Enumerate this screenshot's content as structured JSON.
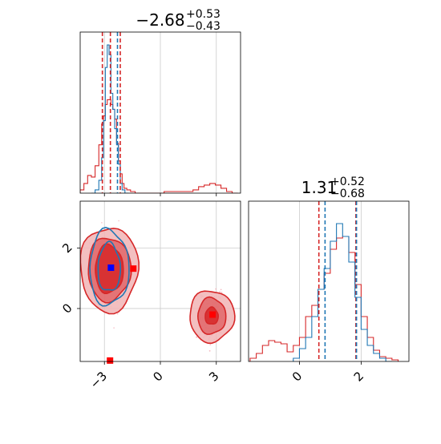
{
  "colors": {
    "red": "#d62728",
    "blue": "#1f77b4",
    "red_fill_light": "#f1b4b5",
    "red_fill_mid": "#e06668",
    "red_fill_dark": "#d62728",
    "grid": "#cccccc",
    "marker_red": "#ff0000",
    "marker_blue": "#0000ff"
  },
  "chart_data": [
    {
      "type": "histogram",
      "panel": "param1-marginal",
      "title": {
        "value": "−2.68",
        "sup": "+0.53",
        "sub": "−0.43"
      },
      "xlim": [
        -4.3,
        4.3
      ],
      "ylim": [
        0,
        1
      ],
      "grid": true,
      "ticks": [
        -3,
        0,
        3
      ],
      "series": [
        {
          "color": "#d62728",
          "x": [
            -4.2,
            -4.0,
            -3.8,
            -3.6,
            -3.4,
            -3.2,
            -3.1,
            -3.0,
            -2.9,
            -2.8,
            -2.7,
            -2.6,
            -2.5,
            -2.4,
            -2.3,
            -2.2,
            -2.1,
            -2.0,
            -1.9,
            -1.7,
            -1.5,
            -1.2,
            1.6,
            1.9,
            2.2,
            2.5,
            2.8,
            3.1,
            3.4,
            3.7,
            4.0
          ],
          "y": [
            0.02,
            0.06,
            0.11,
            0.1,
            0.17,
            0.3,
            0.43,
            0.48,
            0.55,
            0.58,
            0.58,
            0.55,
            0.52,
            0.46,
            0.31,
            0.2,
            0.12,
            0.06,
            0.03,
            0.02,
            0.01,
            0.0,
            0.01,
            0.02,
            0.04,
            0.05,
            0.06,
            0.05,
            0.03,
            0.01,
            0.0
          ],
          "vlines": [
            -3.11,
            -2.68,
            -2.15
          ]
        },
        {
          "color": "#1f77b4",
          "x": [
            -3.6,
            -3.4,
            -3.2,
            -3.1,
            -3.0,
            -2.9,
            -2.8,
            -2.7,
            -2.6,
            -2.5,
            -2.4,
            -2.3,
            -2.2,
            -2.1,
            -2.0,
            -1.8
          ],
          "y": [
            0.0,
            0.02,
            0.08,
            0.22,
            0.45,
            0.78,
            0.92,
            0.86,
            0.62,
            0.52,
            0.4,
            0.3,
            0.18,
            0.06,
            0.02,
            0.0
          ],
          "vlines": [
            -2.3
          ]
        }
      ]
    },
    {
      "type": "contour",
      "panel": "joint",
      "xlim": [
        -4.3,
        4.3
      ],
      "ylim": [
        -1.75,
        3.55
      ],
      "grid": true,
      "xticks": [
        -3,
        0,
        3
      ],
      "yticks": [
        0,
        2
      ],
      "red_components": [
        {
          "cx": -2.75,
          "cy": 1.3,
          "levels": [
            [
              1.55,
              1.4
            ],
            [
              1.15,
              1.05
            ],
            [
              0.75,
              0.8
            ]
          ]
        },
        {
          "cx": 2.75,
          "cy": -0.25,
          "levels": [
            [
              1.2,
              0.85
            ],
            [
              0.75,
              0.6
            ],
            [
              0.35,
              0.28
            ]
          ]
        }
      ],
      "blue_component": {
        "cx": -2.75,
        "cy": 1.35,
        "levels": [
          [
            1.05,
            1.25
          ],
          [
            0.6,
            0.8
          ]
        ]
      },
      "markers": [
        {
          "color": "#0000ff",
          "x": -2.65,
          "y": 1.35
        },
        {
          "color": "#ff0000",
          "x": -1.45,
          "y": 1.32
        },
        {
          "color": "#ff0000",
          "x": 2.8,
          "y": -0.2
        },
        {
          "color": "#ff0000",
          "x": -2.7,
          "y": -1.72
        }
      ]
    },
    {
      "type": "histogram",
      "panel": "param2-marginal",
      "title": {
        "value": "1.31",
        "sup": "+0.52",
        "sub": "−0.68"
      },
      "xlim": [
        -1.65,
        3.55
      ],
      "ylim": [
        0,
        1
      ],
      "grid": true,
      "ticks": [
        0,
        2
      ],
      "series": [
        {
          "color": "#d62728",
          "x": [
            -1.5,
            -1.3,
            -1.1,
            -0.9,
            -0.7,
            -0.5,
            -0.3,
            -0.1,
            0.1,
            0.3,
            0.5,
            0.7,
            0.9,
            1.1,
            1.3,
            1.5,
            1.7,
            1.9,
            2.1,
            2.3,
            2.5,
            2.7,
            2.9,
            3.1
          ],
          "y": [
            0.02,
            0.05,
            0.1,
            0.13,
            0.12,
            0.11,
            0.06,
            0.1,
            0.15,
            0.28,
            0.35,
            0.45,
            0.55,
            0.7,
            0.77,
            0.78,
            0.68,
            0.48,
            0.28,
            0.15,
            0.07,
            0.03,
            0.02,
            0.01
          ],
          "vlines": [
            0.63,
            1.83
          ]
        },
        {
          "color": "#1f77b4",
          "x": [
            -0.1,
            0.1,
            0.3,
            0.5,
            0.7,
            0.9,
            1.1,
            1.3,
            1.5,
            1.7,
            1.9,
            2.1,
            2.3,
            2.5,
            2.7,
            2.9
          ],
          "y": [
            0.02,
            0.08,
            0.15,
            0.28,
            0.45,
            0.58,
            0.75,
            0.86,
            0.78,
            0.62,
            0.4,
            0.2,
            0.1,
            0.05,
            0.02,
            0.0
          ],
          "vlines": [
            0.83,
            1.85
          ]
        }
      ]
    }
  ],
  "labels": {
    "p1_title_value": "−2.68",
    "p1_title_sup": "+0.53",
    "p1_title_sub": "−0.43",
    "p2_title_value": "1.31",
    "p2_title_sup": "+0.52",
    "p2_title_sub": "−0.68",
    "joint_xticks": [
      "−3",
      "0",
      "3"
    ],
    "joint_yticks": [
      "2",
      "0"
    ],
    "p2_xticks": [
      "0",
      "2"
    ]
  }
}
